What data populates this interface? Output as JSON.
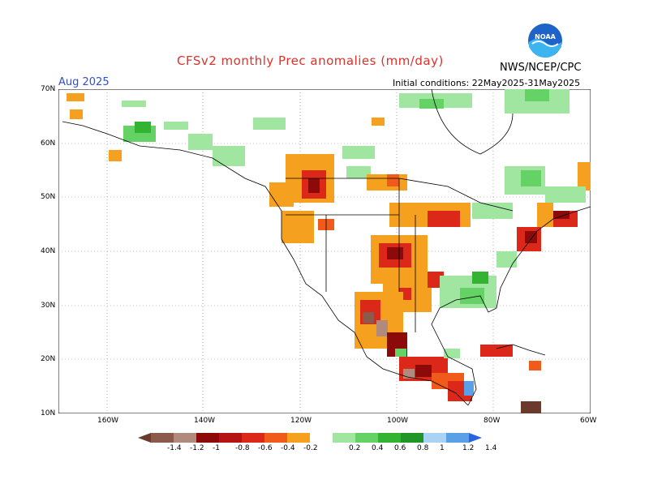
{
  "title": "CFSv2 monthly Prec anomalies (mm/day)",
  "target_month": "Aug 2025",
  "initial_conditions": "Initial conditions: 22May2025-31May2025",
  "agency": "NWS/NCEP/CPC",
  "lat_labels": [
    "70N",
    "60N",
    "50N",
    "40N",
    "30N",
    "20N",
    "10N"
  ],
  "lon_labels": [
    "160W",
    "140W",
    "120W",
    "100W",
    "80W",
    "60W"
  ],
  "colorbar": {
    "labels": [
      "-1.4",
      "-1.2",
      "-1",
      "-0.8",
      "-0.6",
      "-0.4",
      "-0.2",
      "0.2",
      "0.4",
      "0.6",
      "0.8",
      "1",
      "1.2",
      "1.4"
    ],
    "colors": [
      "#6b3a2a",
      "#8c5a4a",
      "#b08a7c",
      "#8c0a0a",
      "#b41414",
      "#dc2818",
      "#f05a1a",
      "#f5a01e",
      "#ffffff",
      "#a0e6a0",
      "#64d264",
      "#32b432",
      "#1e9628",
      "#aad2f5",
      "#5aa0e6",
      "#2864dc"
    ]
  },
  "colors": {
    "title": "#e0302a",
    "month": "#2f4fd0"
  }
}
